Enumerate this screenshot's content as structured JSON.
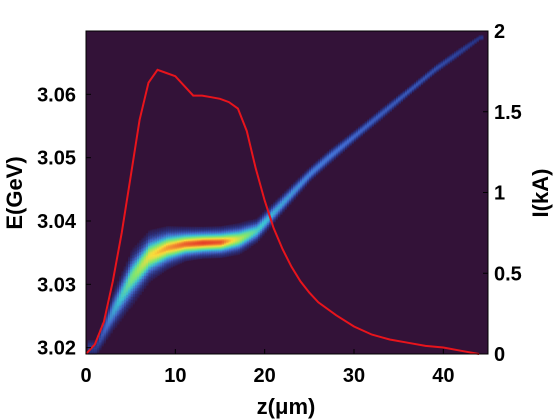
{
  "chart_data": {
    "type": "heatmap",
    "title": "",
    "xlabel": "z(μm)",
    "ylabel_left": "E(GeV)",
    "ylabel_right": "I(kA)",
    "xlim": [
      0,
      45
    ],
    "ylim_left": [
      3.019,
      3.07
    ],
    "ylim_right": [
      0,
      2
    ],
    "x_ticks": [
      "0",
      "10",
      "20",
      "30",
      "40"
    ],
    "y_left_ticks": [
      "3.02",
      "3.03",
      "3.04",
      "3.05",
      "3.06"
    ],
    "y_right_ticks": [
      "0",
      "0.5",
      "1",
      "1.5",
      "2"
    ],
    "background_color": "#331238",
    "current_color": "#e8141c",
    "phase_space": {
      "description_units": "centroid energy in GeV vs z in μm",
      "z": [
        1,
        3,
        5,
        7,
        9,
        11,
        13,
        15,
        17,
        19,
        21,
        23,
        25,
        27,
        30,
        33,
        36,
        39,
        42,
        44
      ],
      "E": [
        3.02,
        3.026,
        3.031,
        3.0345,
        3.0358,
        3.0364,
        3.0366,
        3.0367,
        3.0372,
        3.0385,
        3.0415,
        3.0445,
        3.0475,
        3.05,
        3.0535,
        3.057,
        3.0605,
        3.064,
        3.067,
        3.069
      ],
      "density": [
        0.2,
        0.5,
        0.7,
        0.85,
        0.92,
        0.97,
        1.0,
        0.98,
        0.8,
        0.6,
        0.5,
        0.45,
        0.4,
        0.38,
        0.33,
        0.3,
        0.28,
        0.25,
        0.2,
        0.15
      ],
      "spread": [
        0.0008,
        0.0015,
        0.002,
        0.0018,
        0.0015,
        0.0012,
        0.0011,
        0.0011,
        0.0011,
        0.0009,
        0.0008,
        0.0007,
        0.0006,
        0.0006,
        0.0005,
        0.0005,
        0.0004,
        0.0004,
        0.0004,
        0.0003
      ]
    },
    "series": [
      {
        "axis": "right",
        "x": [
          0,
          1,
          2,
          3,
          4,
          5,
          6,
          7,
          8,
          9,
          10,
          11,
          12,
          13,
          14,
          15,
          16,
          17,
          18,
          19,
          20,
          21,
          22,
          23,
          24,
          25,
          26,
          28,
          30,
          32,
          34,
          36,
          38,
          40,
          42,
          44
        ],
        "y": [
          0.0,
          0.06,
          0.2,
          0.45,
          0.75,
          1.1,
          1.45,
          1.68,
          1.76,
          1.74,
          1.72,
          1.66,
          1.6,
          1.6,
          1.59,
          1.58,
          1.56,
          1.52,
          1.38,
          1.15,
          0.95,
          0.78,
          0.65,
          0.54,
          0.45,
          0.38,
          0.32,
          0.24,
          0.17,
          0.12,
          0.09,
          0.07,
          0.05,
          0.04,
          0.02,
          0.0
        ]
      }
    ]
  }
}
